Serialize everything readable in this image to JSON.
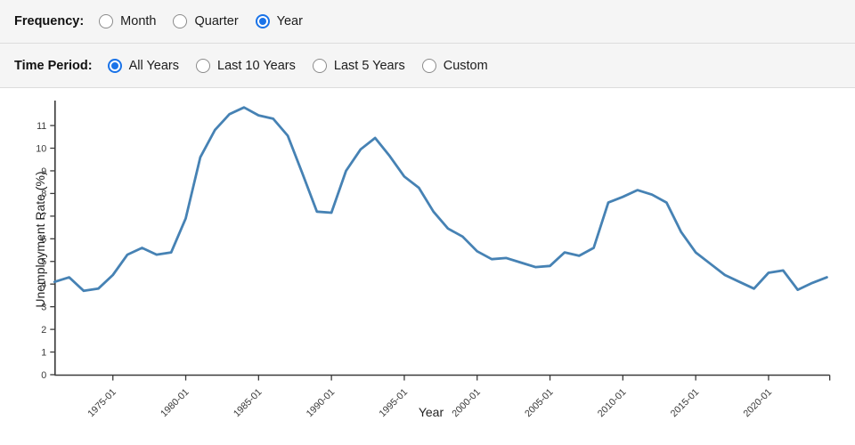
{
  "controls": {
    "frequency": {
      "label": "Frequency:",
      "options": [
        {
          "label": "Month",
          "selected": false
        },
        {
          "label": "Quarter",
          "selected": false
        },
        {
          "label": "Year",
          "selected": true
        }
      ]
    },
    "time_period": {
      "label": "Time Period:",
      "options": [
        {
          "label": "All Years",
          "selected": true
        },
        {
          "label": "Last 10 Years",
          "selected": false
        },
        {
          "label": "Last 5 Years",
          "selected": false
        },
        {
          "label": "Custom",
          "selected": false
        }
      ]
    }
  },
  "colors": {
    "accent": "#1a73e8",
    "line": "#4682b4",
    "axis": "#3a3a3a",
    "bar_bg": "#f5f5f5",
    "border": "#dcdcdc"
  },
  "chart_data": {
    "type": "line",
    "title": "",
    "xlabel": "Year",
    "ylabel": "Unemployment Rate (%)",
    "grid": false,
    "legend": false,
    "xlim": [
      1971,
      2024.2
    ],
    "ylim": [
      0,
      12.1
    ],
    "y_ticks": [
      0,
      1,
      2,
      3,
      4,
      5,
      6,
      7,
      8,
      9,
      10,
      11
    ],
    "x_ticks": [
      {
        "year": 1975,
        "label": "1975-01"
      },
      {
        "year": 1980,
        "label": "1980-01"
      },
      {
        "year": 1985,
        "label": "1985-01"
      },
      {
        "year": 1990,
        "label": "1990-01"
      },
      {
        "year": 1995,
        "label": "1995-01"
      },
      {
        "year": 2000,
        "label": "2000-01"
      },
      {
        "year": 2005,
        "label": "2005-01"
      },
      {
        "year": 2010,
        "label": "2010-01"
      },
      {
        "year": 2015,
        "label": "2015-01"
      },
      {
        "year": 2020,
        "label": "2020-01"
      }
    ],
    "series": [
      {
        "name": "Unemployment Rate (%)",
        "x": [
          1971,
          1972,
          1973,
          1974,
          1975,
          1976,
          1977,
          1978,
          1979,
          1980,
          1981,
          1982,
          1983,
          1984,
          1985,
          1986,
          1987,
          1988,
          1989,
          1990,
          1991,
          1992,
          1993,
          1994,
          1995,
          1996,
          1997,
          1998,
          1999,
          2000,
          2001,
          2002,
          2003,
          2004,
          2005,
          2006,
          2007,
          2008,
          2009,
          2010,
          2011,
          2012,
          2013,
          2014,
          2015,
          2016,
          2017,
          2018,
          2019,
          2020,
          2021,
          2022,
          2023,
          2024
        ],
        "y": [
          4.1,
          4.3,
          3.7,
          3.8,
          4.4,
          5.3,
          5.6,
          5.3,
          5.4,
          6.9,
          9.6,
          10.8,
          11.5,
          11.8,
          11.45,
          11.3,
          10.55,
          8.9,
          7.2,
          7.15,
          9.0,
          9.95,
          10.45,
          9.65,
          8.75,
          8.25,
          7.2,
          6.45,
          6.1,
          5.45,
          5.1,
          5.15,
          4.95,
          4.75,
          4.8,
          5.4,
          5.25,
          5.6,
          7.6,
          7.85,
          8.15,
          7.95,
          7.6,
          6.3,
          5.4,
          4.9,
          4.4,
          4.1,
          3.8,
          4.5,
          4.6,
          3.75,
          4.05,
          4.3
        ]
      }
    ]
  }
}
